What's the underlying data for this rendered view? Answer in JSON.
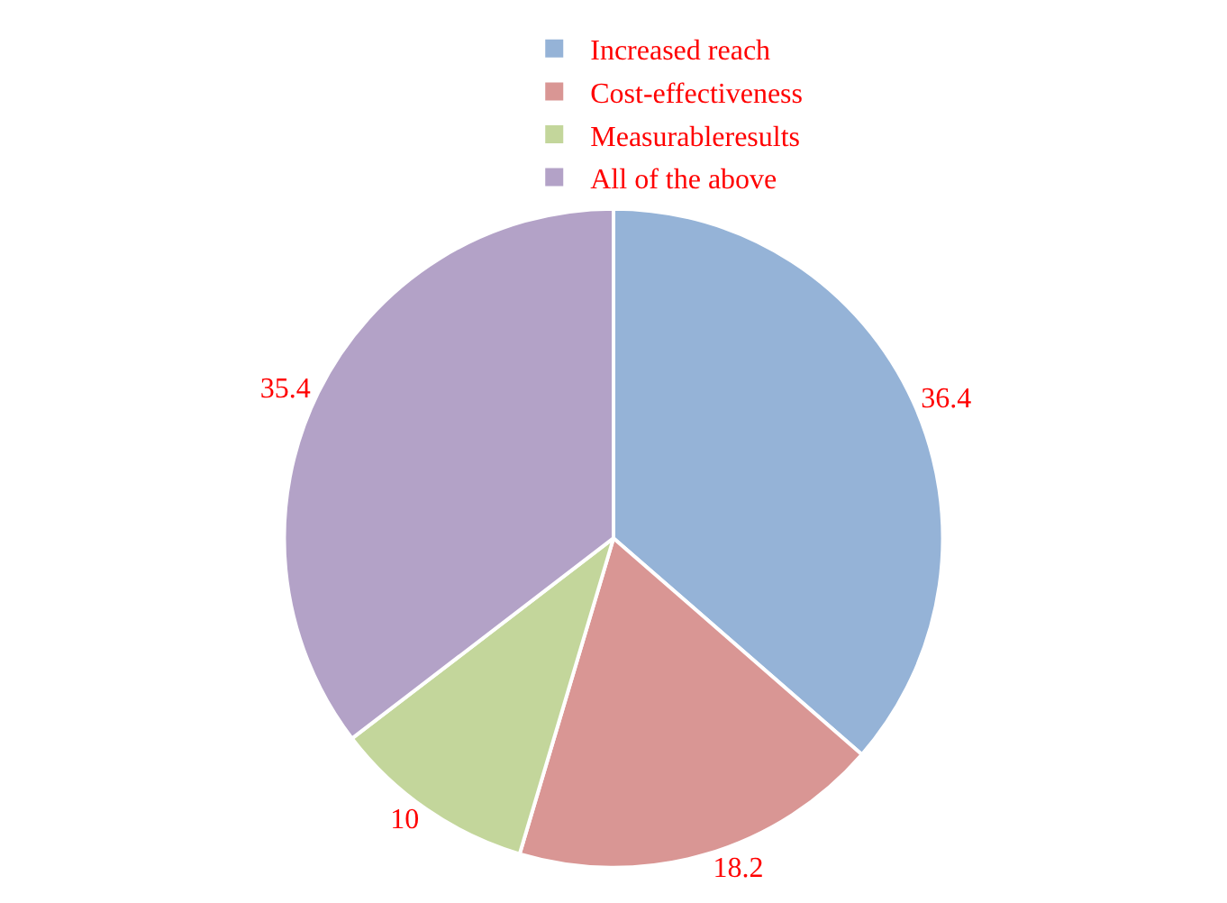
{
  "chart_data": {
    "type": "pie",
    "categories": [
      "Increased reach",
      "Cost-effectiveness",
      "Measurableresults",
      "All of the above"
    ],
    "values": [
      36.4,
      18.2,
      10,
      35.4
    ],
    "colors": [
      "#95b3d7",
      "#d99694",
      "#c3d69b",
      "#b3a2c7"
    ],
    "data_labels": true,
    "legend": "top"
  }
}
